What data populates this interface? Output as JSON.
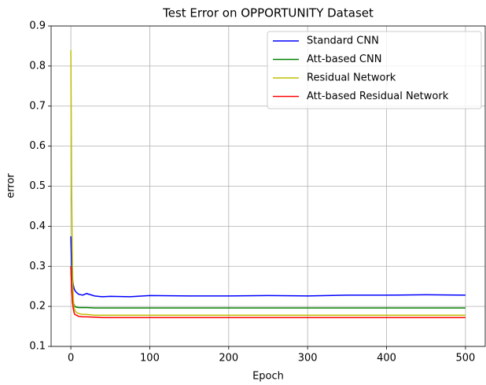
{
  "chart_data": {
    "type": "line",
    "title": "Test Error on OPPORTUNITY Dataset",
    "x_label": "Epoch",
    "y_label": "error",
    "x": [
      0,
      1,
      2,
      3,
      4,
      5,
      7,
      10,
      15,
      20,
      30,
      40,
      50,
      75,
      100,
      150,
      200,
      250,
      300,
      350,
      400,
      450,
      500
    ],
    "series": [
      {
        "name": "Standard CNN",
        "color": "#0000ff",
        "values": [
          0.375,
          0.3,
          0.27,
          0.255,
          0.245,
          0.24,
          0.235,
          0.23,
          0.228,
          0.232,
          0.226,
          0.224,
          0.225,
          0.224,
          0.227,
          0.226,
          0.226,
          0.227,
          0.226,
          0.228,
          0.228,
          0.229,
          0.228
        ]
      },
      {
        "name": "Att-based CNN",
        "color": "#008000",
        "values": [
          0.3,
          0.25,
          0.22,
          0.21,
          0.205,
          0.2,
          0.198,
          0.197,
          0.197,
          0.197,
          0.196,
          0.196,
          0.196,
          0.196,
          0.196,
          0.196,
          0.196,
          0.196,
          0.196,
          0.196,
          0.196,
          0.196,
          0.196
        ]
      },
      {
        "name": "Residual Network",
        "color": "#bfbf00",
        "values": [
          0.84,
          0.5,
          0.3,
          0.22,
          0.2,
          0.19,
          0.185,
          0.182,
          0.18,
          0.18,
          0.178,
          0.178,
          0.178,
          0.178,
          0.178,
          0.178,
          0.178,
          0.178,
          0.178,
          0.178,
          0.178,
          0.178,
          0.178
        ]
      },
      {
        "name": "Att-based Residual Network",
        "color": "#ff0000",
        "values": [
          0.3,
          0.25,
          0.21,
          0.195,
          0.185,
          0.18,
          0.178,
          0.175,
          0.174,
          0.174,
          0.173,
          0.172,
          0.172,
          0.172,
          0.172,
          0.172,
          0.172,
          0.172,
          0.172,
          0.172,
          0.172,
          0.172,
          0.172
        ]
      }
    ],
    "xlim": [
      -25,
      525
    ],
    "xticks": [
      0,
      100,
      200,
      300,
      400,
      500
    ],
    "ylim": [
      0.1,
      0.9
    ],
    "yticks": [
      0.1,
      0.2,
      0.3,
      0.4,
      0.5,
      0.6,
      0.7,
      0.8,
      0.9
    ],
    "grid": true,
    "legend": "upper right"
  }
}
